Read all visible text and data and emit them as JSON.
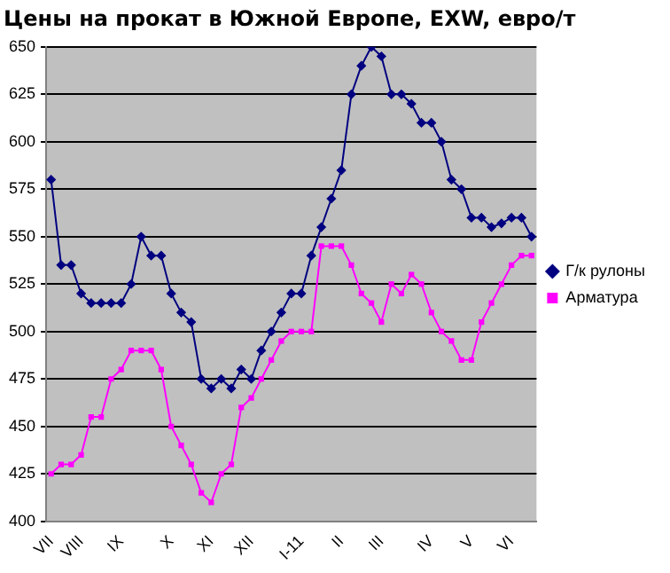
{
  "chart_data": {
    "type": "line",
    "title": "Цены на прокат в Южной Европе, EXW, евро/т",
    "categories": [
      "VII",
      null,
      null,
      "VIII",
      null,
      null,
      null,
      "IX",
      null,
      null,
      null,
      null,
      "X",
      null,
      null,
      null,
      "XI",
      null,
      null,
      null,
      "XII",
      null,
      null,
      null,
      null,
      "I-11",
      null,
      null,
      null,
      "II",
      null,
      null,
      null,
      "III",
      null,
      null,
      null,
      null,
      "IV",
      null,
      null,
      null,
      "V",
      null,
      null,
      null,
      "VI",
      null,
      null
    ],
    "series": [
      {
        "name": "Г/к рулоны",
        "color": "#000080",
        "marker": "diamond",
        "values": [
          580,
          535,
          535,
          520,
          515,
          515,
          515,
          515,
          525,
          550,
          540,
          540,
          520,
          510,
          505,
          475,
          470,
          475,
          470,
          480,
          475,
          490,
          500,
          510,
          520,
          520,
          540,
          555,
          570,
          585,
          625,
          640,
          650,
          645,
          625,
          625,
          620,
          610,
          610,
          600,
          580,
          575,
          560,
          560,
          555,
          557,
          560,
          560,
          550
        ]
      },
      {
        "name": "Арматура",
        "color": "#ff00ff",
        "marker": "square",
        "values": [
          425,
          430,
          430,
          435,
          455,
          455,
          475,
          480,
          490,
          490,
          490,
          480,
          450,
          440,
          430,
          415,
          410,
          425,
          430,
          460,
          465,
          475,
          485,
          495,
          500,
          500,
          500,
          545,
          545,
          545,
          535,
          520,
          515,
          505,
          525,
          520,
          530,
          525,
          510,
          500,
          495,
          485,
          485,
          505,
          515,
          525,
          535,
          540,
          540
        ]
      }
    ],
    "ylim": [
      400,
      650
    ],
    "yticks": [
      400,
      425,
      450,
      475,
      500,
      525,
      550,
      575,
      600,
      625,
      650
    ],
    "grid": "y",
    "legend": "right"
  }
}
